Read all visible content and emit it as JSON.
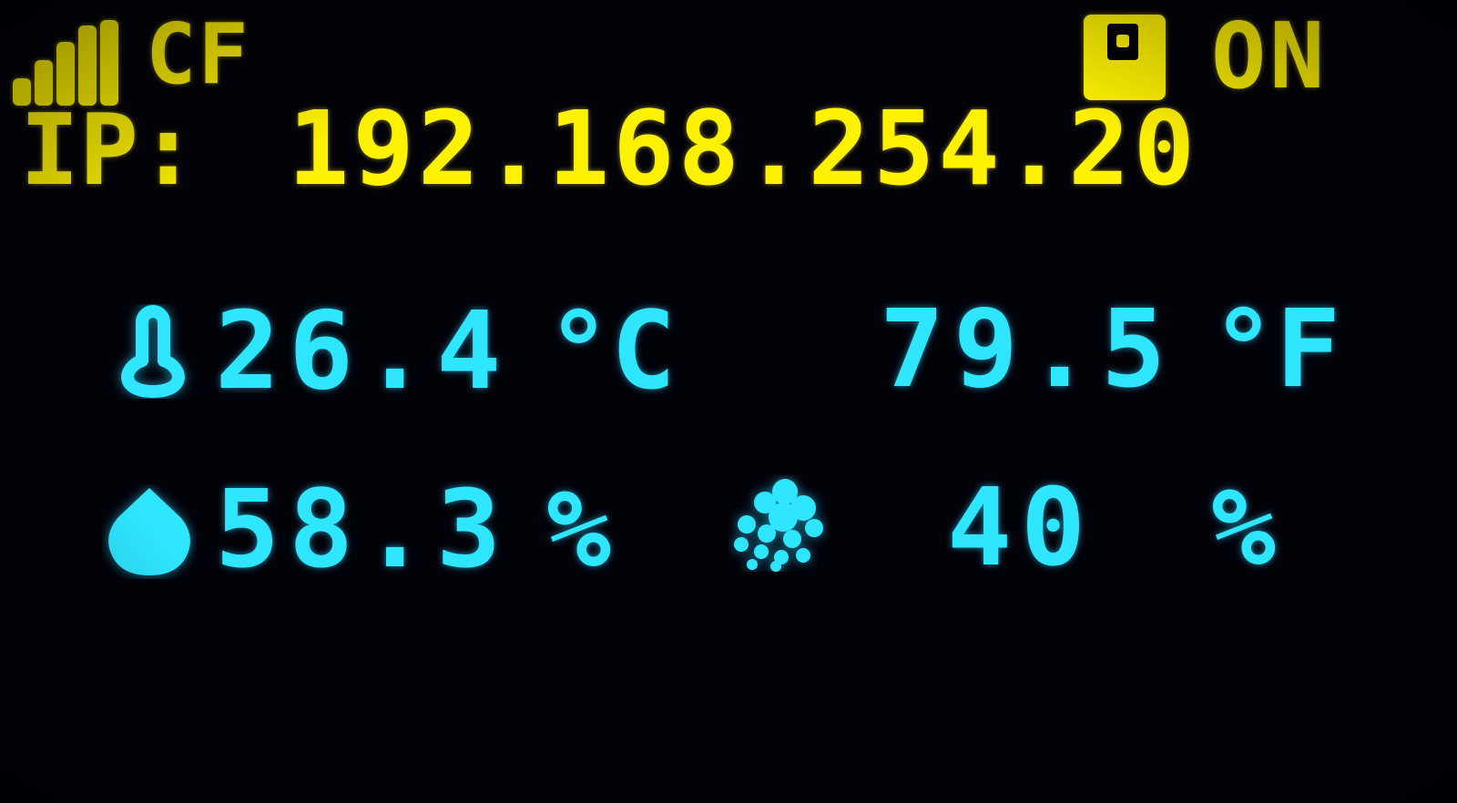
{
  "status_bar": {
    "mode": "CF",
    "status": "ON",
    "icons": {
      "signal": "wifi-signal-icon",
      "storage": "sd-card-icon"
    }
  },
  "network": {
    "ip_label": "IP:",
    "ip_address": "192.168.254.20"
  },
  "temperature": {
    "icon": "thermometer-icon",
    "celsius": "26.4",
    "celsius_unit": "°C",
    "fahrenheit": "79.5",
    "fahrenheit_unit": "°F"
  },
  "humidity": {
    "icon": "water-drop-icon",
    "value": "58.3",
    "unit": "%"
  },
  "fan": {
    "icon": "fan-icon",
    "value": "40",
    "unit": "%"
  },
  "colors": {
    "header": "#fff200",
    "readings": "#2ee6ff",
    "background": "#020209"
  }
}
